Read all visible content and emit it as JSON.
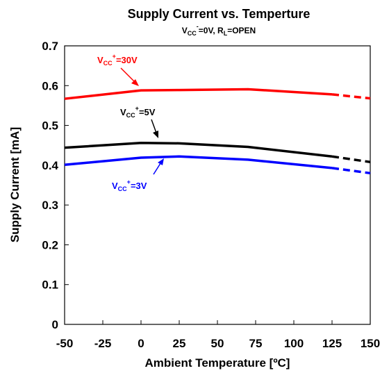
{
  "chart_data": {
    "type": "line",
    "title": "Supply Current vs. Temperture",
    "subtitle": {
      "base": "V",
      "sub1": "CC",
      "sup": "-",
      "mid": "=0V, R",
      "sub2": "L",
      "tail": "=OPEN"
    },
    "xlabel": "Ambient Temperature [ºC]",
    "ylabel": "Supply Current [mA]",
    "xlim": [
      -50,
      150
    ],
    "ylim": [
      0,
      0.7
    ],
    "xticks": [
      "-50",
      "-25",
      "0",
      "25",
      "50",
      "75",
      "100",
      "125",
      "150"
    ],
    "yticks": [
      "0",
      "0.1",
      "0.2",
      "0.3",
      "0.4",
      "0.5",
      "0.6",
      "0.7"
    ],
    "grid": false,
    "series": [
      {
        "label": {
          "base": "V",
          "sub": "CC",
          "sup": "+",
          "tail": "=30V"
        },
        "color": "#ff0000",
        "x": [
          -50,
          0,
          25,
          70,
          125
        ],
        "values": [
          0.567,
          0.588,
          0.589,
          0.591,
          0.578
        ],
        "extrapolated": {
          "x": [
            125,
            150
          ],
          "values": [
            0.578,
            0.568
          ]
        }
      },
      {
        "label": {
          "base": "V",
          "sub": "CC",
          "sup": "+",
          "tail": "=5V"
        },
        "color": "#000000",
        "x": [
          -50,
          0,
          25,
          70,
          125
        ],
        "values": [
          0.444,
          0.456,
          0.455,
          0.446,
          0.422
        ],
        "extrapolated": {
          "x": [
            125,
            150
          ],
          "values": [
            0.422,
            0.408
          ]
        }
      },
      {
        "label": {
          "base": "V",
          "sub": "CC",
          "sup": "+",
          "tail": "=3V"
        },
        "color": "#0000ff",
        "x": [
          -50,
          0,
          25,
          70,
          125
        ],
        "values": [
          0.401,
          0.419,
          0.422,
          0.414,
          0.393
        ],
        "extrapolated": {
          "x": [
            125,
            150
          ],
          "values": [
            0.393,
            0.38
          ]
        }
      }
    ]
  }
}
